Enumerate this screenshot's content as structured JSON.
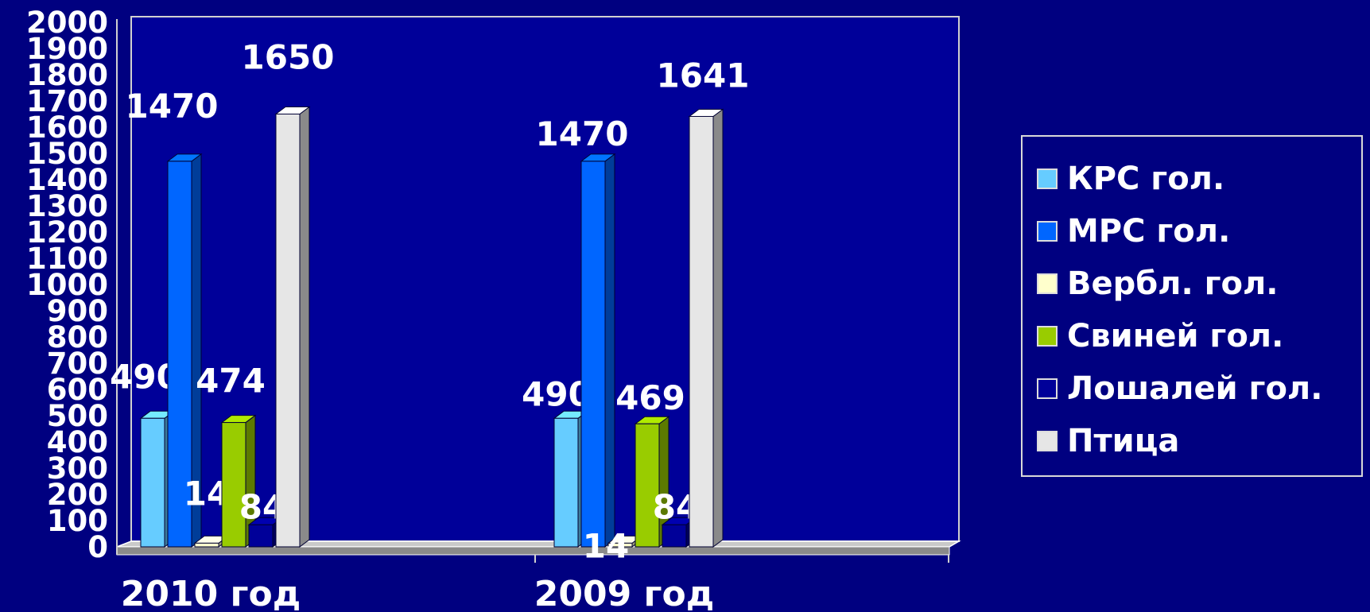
{
  "chart_data": {
    "type": "bar",
    "title": "",
    "xlabel": "",
    "ylabel": "",
    "categories": [
      "2010 год",
      "2009 год"
    ],
    "ylim": [
      0,
      2000
    ],
    "yticks": [
      0,
      100,
      200,
      300,
      400,
      500,
      600,
      700,
      800,
      900,
      1000,
      1100,
      1200,
      1300,
      1400,
      1500,
      1600,
      1700,
      1800,
      1900,
      2000
    ],
    "grid": false,
    "legend_position": "right",
    "series": [
      {
        "name": "КРС гол.",
        "values": [
          490,
          490
        ],
        "color": "#66ccff"
      },
      {
        "name": "МРС гол.",
        "values": [
          1470,
          1470
        ],
        "color": "#0066ff"
      },
      {
        "name": "Вербл. гол.",
        "values": [
          14,
          14
        ],
        "color": "#ffffcc"
      },
      {
        "name": "Свиней гол.",
        "values": [
          474,
          469
        ],
        "color": "#99cc00"
      },
      {
        "name": "Лошалей гол.",
        "values": [
          84,
          84
        ],
        "color": "#000099"
      },
      {
        "name": "Птица",
        "values": [
          1650,
          1641
        ],
        "color": "#e6e6e6"
      }
    ],
    "colors": {
      "background": "#000080",
      "plot_background": "#000099",
      "text": "#ffffff",
      "axis": "#d0d0d0"
    }
  }
}
